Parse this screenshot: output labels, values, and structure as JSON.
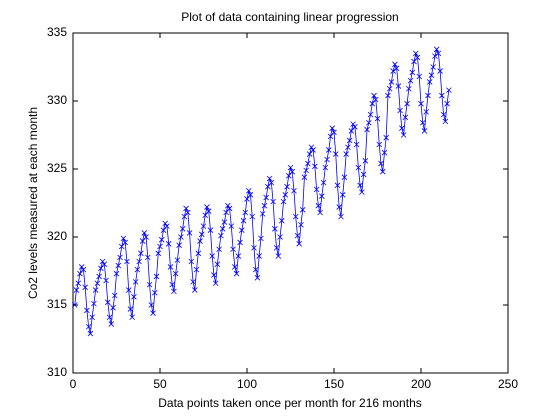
{
  "chart_data": {
    "type": "line",
    "title": "Plot of data containing linear progression",
    "xlabel": "Data points taken once per month for 216 months",
    "ylabel": "Co2 levels measured at each month",
    "xlim": [
      0,
      250
    ],
    "xticks": [
      0,
      50,
      100,
      150,
      200,
      250
    ],
    "ylim": [
      310,
      335
    ],
    "yticks": [
      310,
      315,
      320,
      325,
      330,
      335
    ],
    "marker": "x",
    "x": [
      1,
      2,
      3,
      4,
      5,
      6,
      7,
      8,
      9,
      10,
      11,
      12,
      13,
      14,
      15,
      16,
      17,
      18,
      19,
      20,
      21,
      22,
      23,
      24,
      25,
      26,
      27,
      28,
      29,
      30,
      31,
      32,
      33,
      34,
      35,
      36,
      37,
      38,
      39,
      40,
      41,
      42,
      43,
      44,
      45,
      46,
      47,
      48,
      49,
      50,
      51,
      52,
      53,
      54,
      55,
      56,
      57,
      58,
      59,
      60,
      61,
      62,
      63,
      64,
      65,
      66,
      67,
      68,
      69,
      70,
      71,
      72,
      73,
      74,
      75,
      76,
      77,
      78,
      79,
      80,
      81,
      82,
      83,
      84,
      85,
      86,
      87,
      88,
      89,
      90,
      91,
      92,
      93,
      94,
      95,
      96,
      97,
      98,
      99,
      100,
      101,
      102,
      103,
      104,
      105,
      106,
      107,
      108,
      109,
      110,
      111,
      112,
      113,
      114,
      115,
      116,
      117,
      118,
      119,
      120,
      121,
      122,
      123,
      124,
      125,
      126,
      127,
      128,
      129,
      130,
      131,
      132,
      133,
      134,
      135,
      136,
      137,
      138,
      139,
      140,
      141,
      142,
      143,
      144,
      145,
      146,
      147,
      148,
      149,
      150,
      151,
      152,
      153,
      154,
      155,
      156,
      157,
      158,
      159,
      160,
      161,
      162,
      163,
      164,
      165,
      166,
      167,
      168,
      169,
      170,
      171,
      172,
      173,
      174,
      175,
      176,
      177,
      178,
      179,
      180,
      181,
      182,
      183,
      184,
      185,
      186,
      187,
      188,
      189,
      190,
      191,
      192,
      193,
      194,
      195,
      196,
      197,
      198,
      199,
      200,
      201,
      202,
      203,
      204,
      205,
      206,
      207,
      208,
      209,
      210,
      211,
      212,
      213,
      214,
      215,
      216
    ],
    "series": [
      {
        "color": "#0000ff",
        "values": [
          315.0,
          316.1,
          316.6,
          317.3,
          317.8,
          317.6,
          316.3,
          314.6,
          313.4,
          312.9,
          314.1,
          315.1,
          316.1,
          316.6,
          317.1,
          317.7,
          318.2,
          318.0,
          316.8,
          315.2,
          314.1,
          313.6,
          314.8,
          315.7,
          317.3,
          317.9,
          318.5,
          319.3,
          319.9,
          319.6,
          318.2,
          316.1,
          314.7,
          314.1,
          315.6,
          316.7,
          317.6,
          318.2,
          318.8,
          319.7,
          320.3,
          320.0,
          318.5,
          316.5,
          315.0,
          314.4,
          315.9,
          317.1,
          318.8,
          319.3,
          319.8,
          320.5,
          321.0,
          320.8,
          319.5,
          317.8,
          316.5,
          316.0,
          317.3,
          318.3,
          319.4,
          320.0,
          320.6,
          321.5,
          322.1,
          321.8,
          320.3,
          318.2,
          316.7,
          316.1,
          317.6,
          318.8,
          319.7,
          320.2,
          320.8,
          321.6,
          322.2,
          321.9,
          320.5,
          318.6,
          317.2,
          316.6,
          318.0,
          319.1,
          320.1,
          320.6,
          321.1,
          321.8,
          322.3,
          322.1,
          320.8,
          319.1,
          317.8,
          317.3,
          318.6,
          319.6,
          320.5,
          321.2,
          321.8,
          322.8,
          323.4,
          323.1,
          321.5,
          319.2,
          317.6,
          317.0,
          318.6,
          319.9,
          321.7,
          322.3,
          322.9,
          323.7,
          324.3,
          324.0,
          322.6,
          320.6,
          319.2,
          318.6,
          320.0,
          321.2,
          322.6,
          323.1,
          323.7,
          324.5,
          325.1,
          324.8,
          323.4,
          321.5,
          320.1,
          319.5,
          320.9,
          322.0,
          324.4,
          324.9,
          325.4,
          326.1,
          326.6,
          326.4,
          325.2,
          323.5,
          322.3,
          321.8,
          323.0,
          324.0,
          325.1,
          325.7,
          326.4,
          327.4,
          328.0,
          327.7,
          326.1,
          323.8,
          322.2,
          321.5,
          323.1,
          324.4,
          326.1,
          326.6,
          327.1,
          327.8,
          328.3,
          328.1,
          326.8,
          325.1,
          323.8,
          323.3,
          324.6,
          325.6,
          327.9,
          328.4,
          329.0,
          329.8,
          330.4,
          330.1,
          328.7,
          326.8,
          325.4,
          324.8,
          326.2,
          327.3,
          330.4,
          330.9,
          331.4,
          332.2,
          332.7,
          332.4,
          331.1,
          329.3,
          328.0,
          327.5,
          328.8,
          329.8,
          330.9,
          331.5,
          332.1,
          332.9,
          333.5,
          333.2,
          331.8,
          329.8,
          328.4,
          327.8,
          329.2,
          330.4,
          331.4,
          331.9,
          332.5,
          333.3,
          333.8,
          333.5,
          332.2,
          330.4,
          329.0,
          328.5,
          329.8,
          330.8
        ]
      }
    ]
  }
}
